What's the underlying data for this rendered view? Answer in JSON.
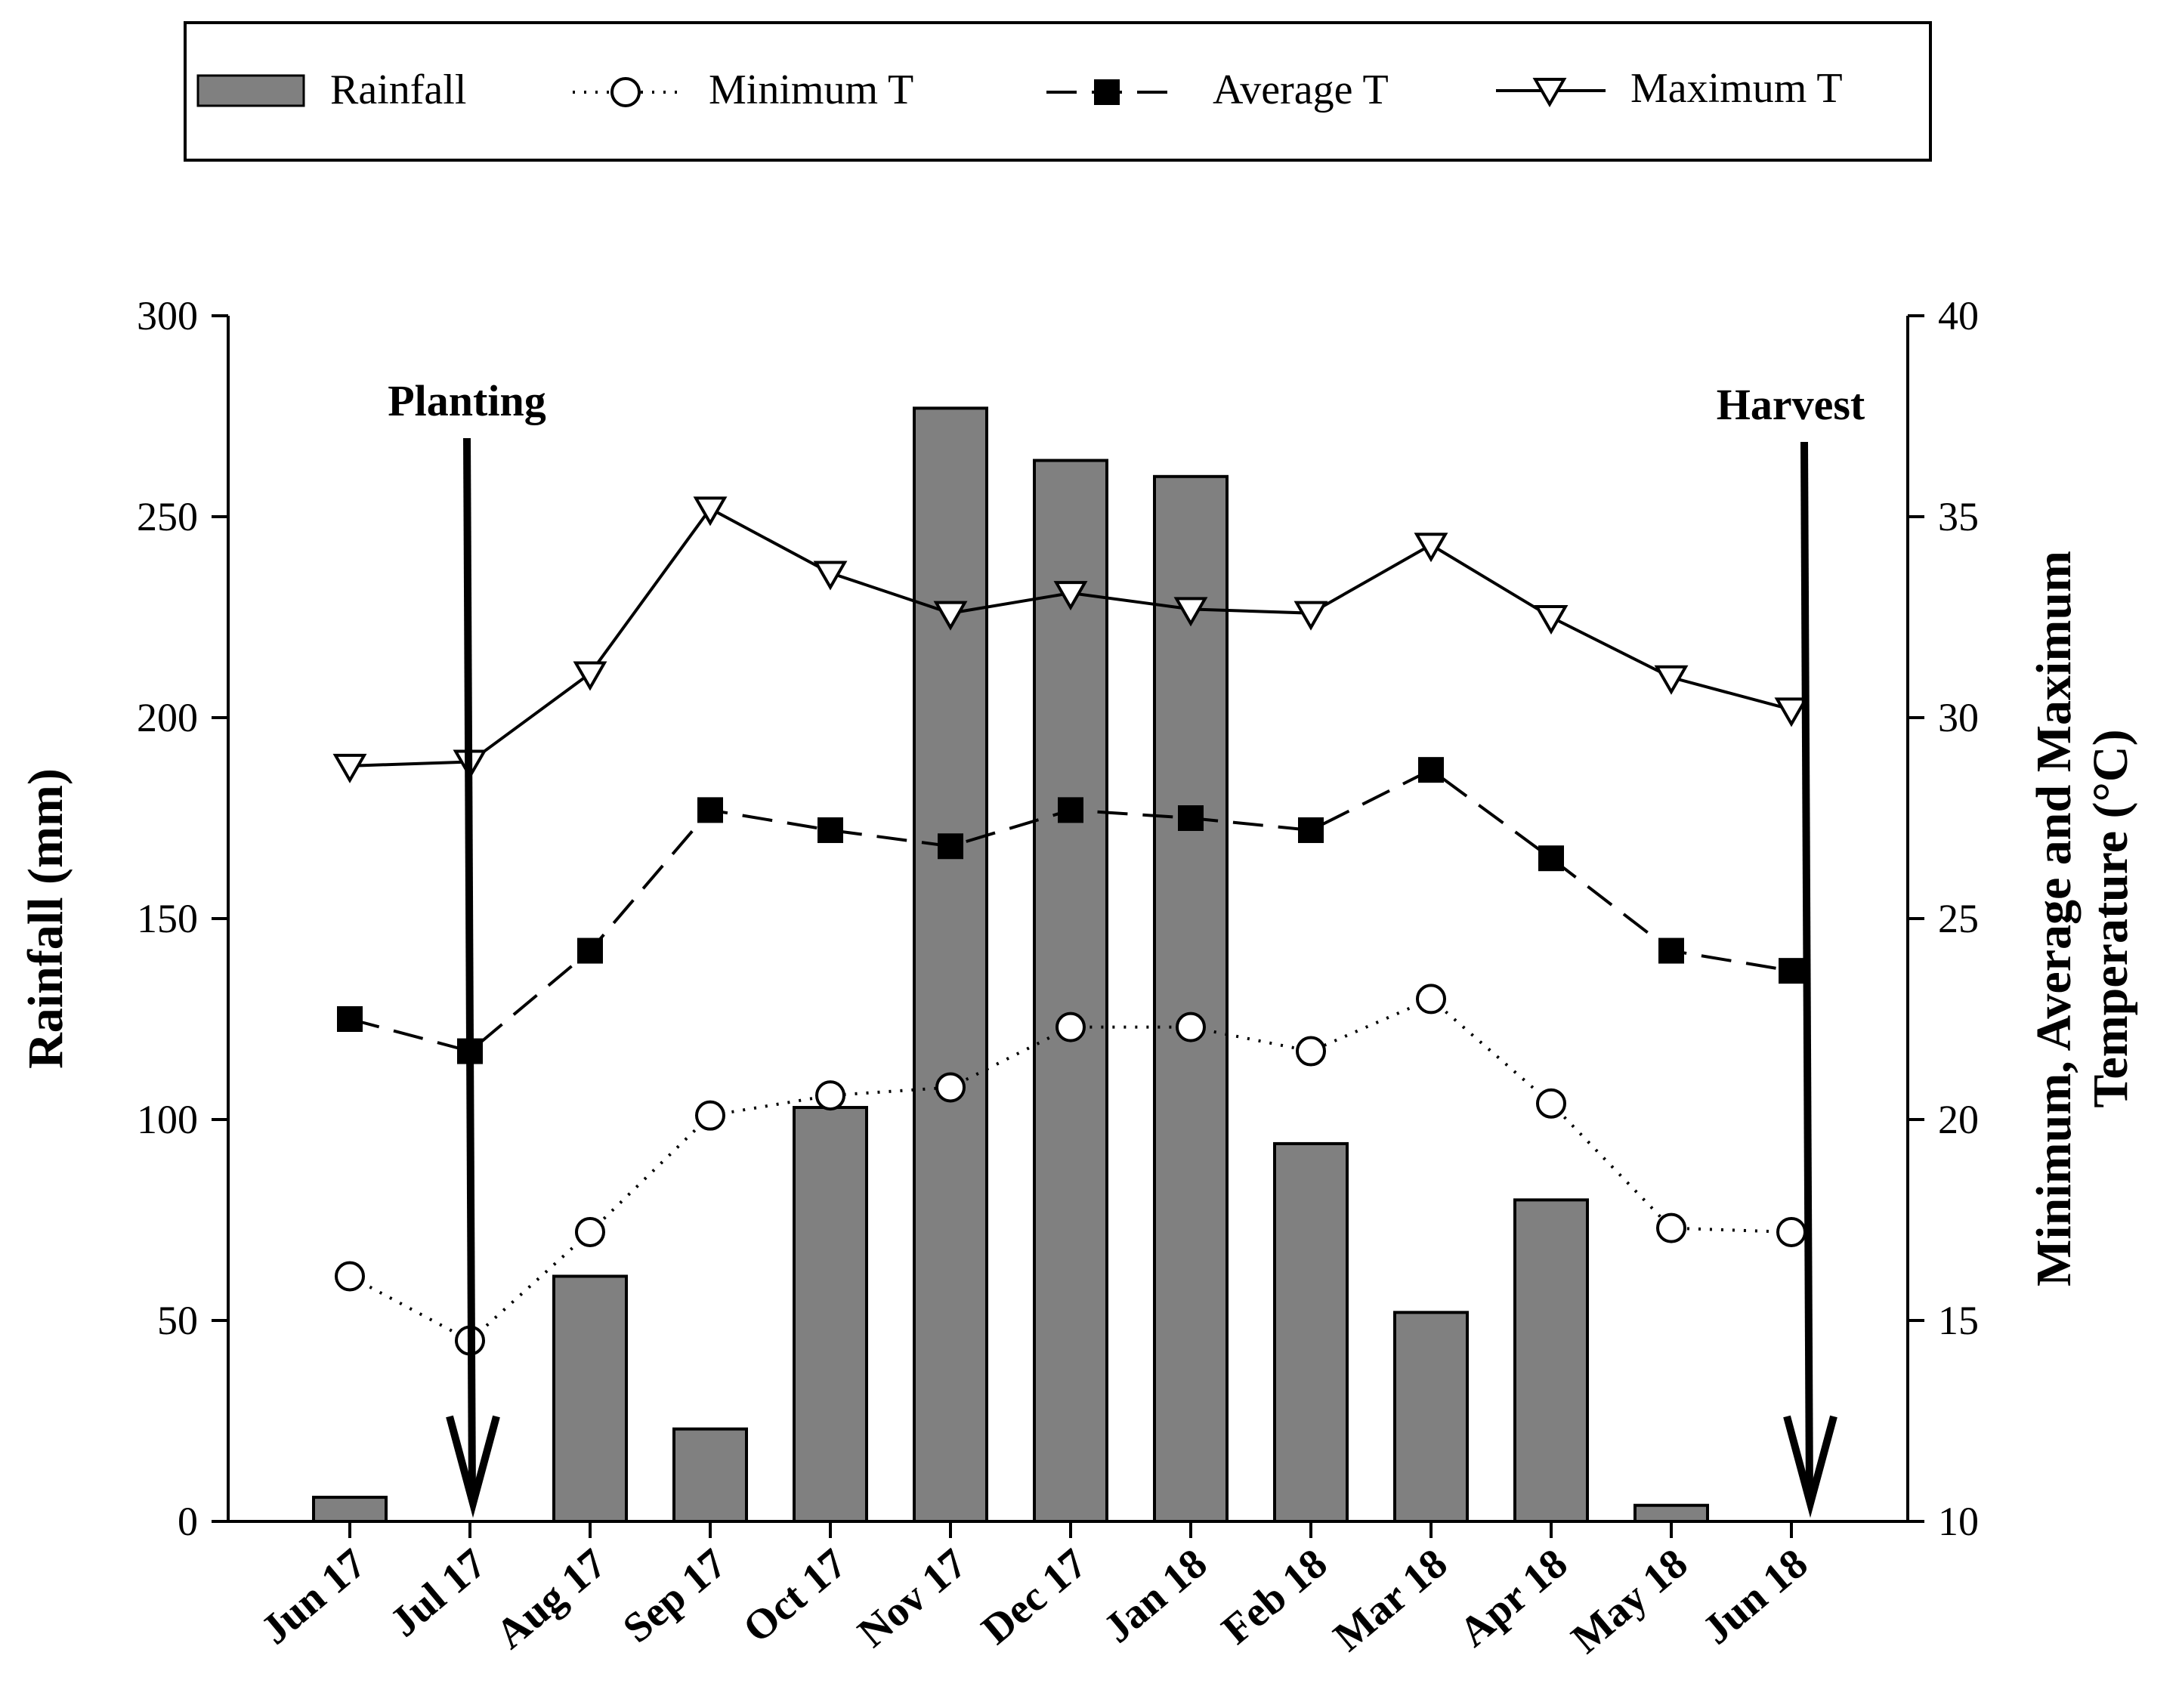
{
  "chart_data": {
    "type": "bar+line",
    "categories": [
      "Jun 17",
      "Jul 17",
      "Aug 17",
      "Sep 17",
      "Oct 17",
      "Nov 17",
      "Dec 17",
      "Jan 18",
      "Feb 18",
      "Mar 18",
      "Apr 18",
      "May 18",
      "Jun 18"
    ],
    "rainfall": {
      "name": "Rainfall",
      "values": [
        6,
        0,
        61,
        23,
        103,
        277,
        264,
        260,
        94,
        52,
        80,
        4,
        0
      ]
    },
    "series": [
      {
        "name": "Minimum T",
        "key": "min",
        "values": [
          16.1,
          14.5,
          17.2,
          20.1,
          20.6,
          20.8,
          22.3,
          22.3,
          21.7,
          23.0,
          20.4,
          17.3,
          17.2
        ]
      },
      {
        "name": "Average T",
        "key": "avg",
        "values": [
          22.5,
          21.7,
          24.2,
          27.7,
          27.2,
          26.8,
          27.7,
          27.5,
          27.2,
          28.7,
          26.5,
          24.2,
          23.7
        ]
      },
      {
        "name": "Maximum T",
        "key": "max",
        "values": [
          28.8,
          28.9,
          31.1,
          35.2,
          33.6,
          32.6,
          33.1,
          32.7,
          32.6,
          34.3,
          32.5,
          31.0,
          30.2
        ]
      }
    ],
    "ylabel_left": "Rainfall (mm)",
    "ylim_left": [
      0,
      300
    ],
    "yticks_left": [
      "0",
      "50",
      "100",
      "150",
      "200",
      "250",
      "300"
    ],
    "ylabel_right_line1": "Minimum, Average and Maximum",
    "ylabel_right_line2": "Temperature (°C)",
    "ylim_right": [
      10,
      40
    ],
    "yticks_right": [
      "10",
      "15",
      "20",
      "25",
      "30",
      "35",
      "40"
    ],
    "legend": [
      "Rainfall",
      "Minimum T",
      "Average T",
      "Maximum T"
    ],
    "legend_position": "top",
    "annotations": [
      {
        "text": "Planting",
        "category": "Jul 17"
      },
      {
        "text": "Harvest",
        "category": "Jun 18"
      }
    ],
    "colors": {
      "bar": "#808080",
      "line": "#000000",
      "marker_open": "#ffffff"
    }
  }
}
